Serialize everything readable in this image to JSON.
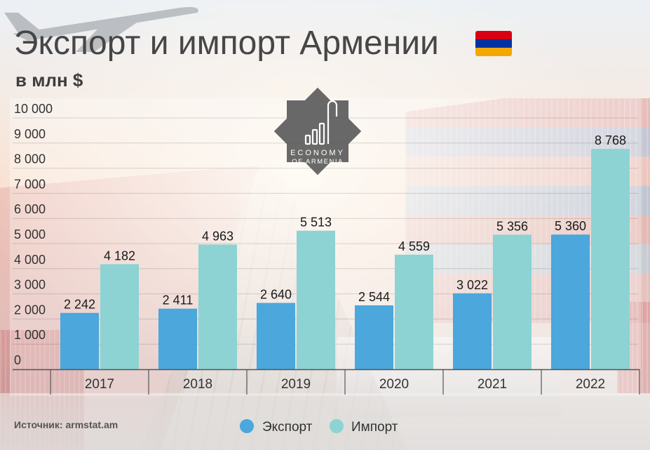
{
  "flag": {
    "colors": [
      "#d90012",
      "#0033a0",
      "#f2a800"
    ]
  },
  "logo": {
    "line1": "ECONOMY",
    "line2": "OF ARMENIA"
  },
  "source": "Источник: armstat.am",
  "chart_data": {
    "type": "bar",
    "title": "Экспорт и импорт Армении",
    "ylabel": "в млн $",
    "xlabel": "",
    "categories": [
      "2017",
      "2018",
      "2019",
      "2020",
      "2021",
      "2022"
    ],
    "series": [
      {
        "name": "Экспорт",
        "values": [
          2242,
          2411,
          2640,
          2544,
          3022,
          5360
        ],
        "color": "#4ba7dc"
      },
      {
        "name": "Импорт",
        "values": [
          4182,
          4963,
          5513,
          4559,
          5356,
          8768
        ],
        "color": "#8dd3d3"
      }
    ],
    "ylim": [
      0,
      10000
    ],
    "yticks": [
      0,
      1000,
      2000,
      3000,
      4000,
      5000,
      6000,
      7000,
      8000,
      9000,
      10000
    ],
    "grid": true,
    "legend": "bottom-center",
    "data_labels": true
  }
}
